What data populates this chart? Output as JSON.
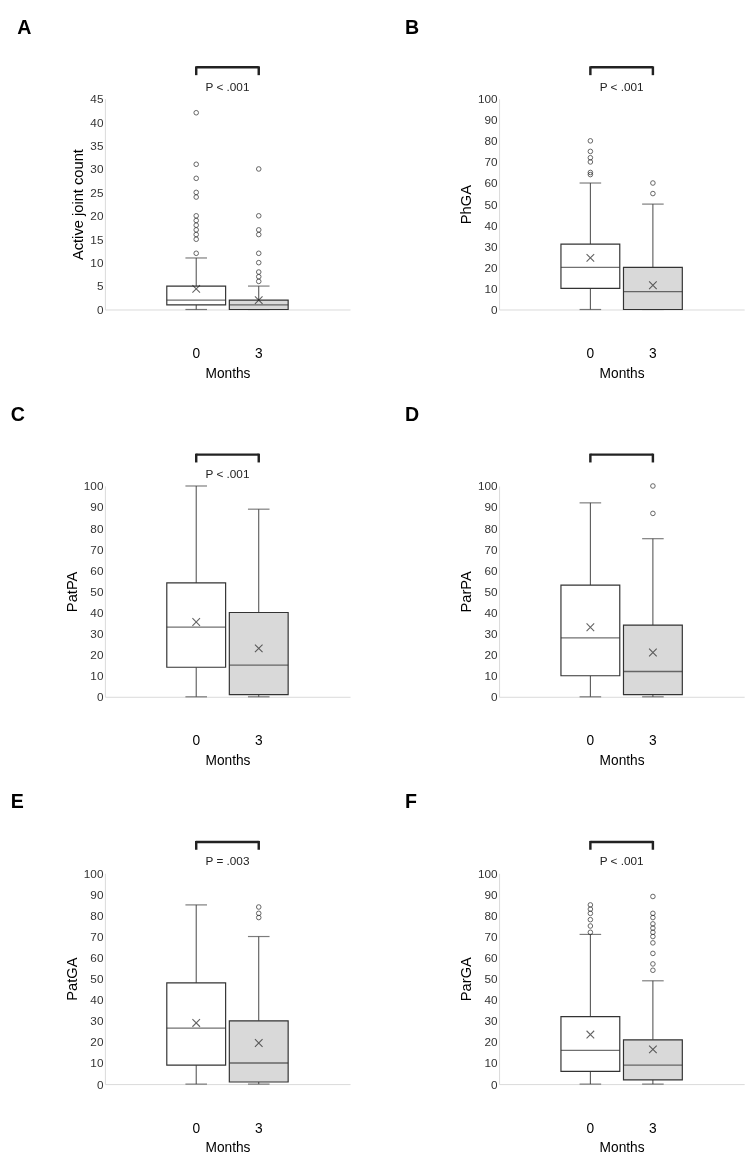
{
  "chart_data": [
    {
      "type": "box",
      "title": "A",
      "xlabel": "Months",
      "ylabel": "Active joint count",
      "categories": [
        "0",
        "3"
      ],
      "colors": [
        "#ffffff",
        "#d9d9d9"
      ],
      "ylim": [
        0,
        45
      ],
      "yticks": [
        0,
        5,
        10,
        15,
        20,
        25,
        30,
        35,
        40,
        45
      ],
      "annotations": [
        "P < .001"
      ],
      "boxes": [
        {
          "low": 0,
          "q1": 1,
          "median": 2,
          "q3": 5,
          "high": 11,
          "mean": 4.4,
          "outliers": [
            12,
            15,
            16,
            17,
            18,
            19,
            20,
            24,
            25,
            28,
            31,
            42
          ]
        },
        {
          "low": 0,
          "q1": 0,
          "median": 1,
          "q3": 2,
          "high": 5,
          "mean": 2,
          "outliers": [
            6,
            7,
            8,
            10,
            12,
            16,
            17,
            20,
            30
          ]
        }
      ]
    },
    {
      "type": "box",
      "title": "B",
      "xlabel": "Months",
      "ylabel": "PhGA",
      "categories": [
        "0",
        "3"
      ],
      "colors": [
        "#ffffff",
        "#d9d9d9"
      ],
      "ylim": [
        0,
        100
      ],
      "yticks": [
        0,
        10,
        20,
        30,
        40,
        50,
        60,
        70,
        80,
        90,
        100
      ],
      "annotations": [
        "P < .001"
      ],
      "boxes": [
        {
          "low": 0,
          "q1": 10,
          "median": 20,
          "q3": 31,
          "high": 60,
          "mean": 24.5,
          "outliers": [
            64,
            65,
            70,
            72,
            75,
            80
          ]
        },
        {
          "low": 0,
          "q1": 0,
          "median": 8.5,
          "q3": 20,
          "high": 50,
          "mean": 11.5,
          "outliers": [
            55,
            60
          ]
        }
      ]
    },
    {
      "type": "box",
      "title": "C",
      "xlabel": "Months",
      "ylabel": "PatPA",
      "categories": [
        "0",
        "3"
      ],
      "colors": [
        "#ffffff",
        "#d9d9d9"
      ],
      "ylim": [
        0,
        100
      ],
      "yticks": [
        0,
        10,
        20,
        30,
        40,
        50,
        60,
        70,
        80,
        90,
        100
      ],
      "annotations": [
        "P < .001"
      ],
      "boxes": [
        {
          "low": 0,
          "q1": 14,
          "median": 33,
          "q3": 54,
          "high": 100,
          "mean": 35.5
        },
        {
          "low": 0,
          "q1": 1,
          "median": 15,
          "q3": 40,
          "high": 89,
          "mean": 23
        }
      ]
    },
    {
      "type": "box",
      "title": "D",
      "xlabel": "Months",
      "ylabel": "ParPA",
      "categories": [
        "0",
        "3"
      ],
      "colors": [
        "#ffffff",
        "#d9d9d9"
      ],
      "ylim": [
        0,
        100
      ],
      "yticks": [
        0,
        10,
        20,
        30,
        40,
        50,
        60,
        70,
        80,
        90,
        100
      ],
      "boxes": [
        {
          "low": 0,
          "q1": 10,
          "median": 28,
          "q3": 53,
          "high": 92,
          "mean": 33
        },
        {
          "low": 0,
          "q1": 1,
          "median": 12,
          "q3": 34,
          "high": 75,
          "mean": 21,
          "outliers": [
            87,
            100
          ]
        }
      ]
    },
    {
      "type": "box",
      "title": "E",
      "xlabel": "Months",
      "ylabel": "PatGA",
      "categories": [
        "0",
        "3"
      ],
      "colors": [
        "#ffffff",
        "#d9d9d9"
      ],
      "ylim": [
        0,
        100
      ],
      "yticks": [
        0,
        10,
        20,
        30,
        40,
        50,
        60,
        70,
        80,
        90,
        100
      ],
      "annotations": [
        "P = .003"
      ],
      "boxes": [
        {
          "low": 0,
          "q1": 9,
          "median": 26.5,
          "q3": 48,
          "high": 85,
          "mean": 29
        },
        {
          "low": 0,
          "q1": 1,
          "median": 10,
          "q3": 30,
          "high": 70,
          "mean": 19.5,
          "outliers": [
            79,
            81,
            84
          ]
        }
      ]
    },
    {
      "type": "box",
      "title": "F",
      "xlabel": "Months",
      "ylabel": "ParGA",
      "categories": [
        "0",
        "3"
      ],
      "colors": [
        "#ffffff",
        "#d9d9d9"
      ],
      "ylim": [
        0,
        100
      ],
      "yticks": [
        0,
        10,
        20,
        30,
        40,
        50,
        60,
        70,
        80,
        90,
        100
      ],
      "annotations": [
        "P < .001"
      ],
      "boxes": [
        {
          "low": 0,
          "q1": 6,
          "median": 16,
          "q3": 32,
          "high": 71,
          "mean": 23.5,
          "outliers": [
            72,
            75,
            78,
            81,
            83,
            85
          ]
        },
        {
          "low": 0,
          "q1": 2,
          "median": 9,
          "q3": 21,
          "high": 49,
          "mean": 16.5,
          "outliers": [
            54,
            57,
            62,
            67,
            70,
            72,
            74,
            76,
            79,
            81,
            89
          ]
        }
      ]
    }
  ]
}
